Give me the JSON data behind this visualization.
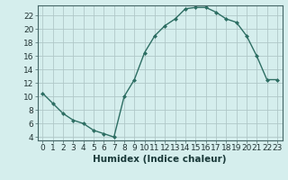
{
  "x": [
    0,
    1,
    2,
    3,
    4,
    5,
    6,
    7,
    8,
    9,
    10,
    11,
    12,
    13,
    14,
    15,
    16,
    17,
    18,
    19,
    20,
    21,
    22,
    23
  ],
  "y": [
    10.5,
    9.0,
    7.5,
    6.5,
    6.0,
    5.0,
    4.5,
    4.0,
    10.0,
    12.5,
    16.5,
    19.0,
    20.5,
    21.5,
    23.0,
    23.2,
    23.2,
    22.5,
    21.5,
    21.0,
    19.0,
    16.0,
    12.5,
    12.5
  ],
  "line_color": "#2d6e63",
  "marker": "D",
  "marker_size": 2.5,
  "bg_color": "#d5eeed",
  "grid_color": "#b0c8c8",
  "xlabel": "Humidex (Indice chaleur)",
  "xlim": [
    -0.5,
    23.5
  ],
  "ylim": [
    3.5,
    23.5
  ],
  "yticks": [
    4,
    6,
    8,
    10,
    12,
    14,
    16,
    18,
    20,
    22
  ],
  "xticks": [
    0,
    1,
    2,
    3,
    4,
    5,
    6,
    7,
    8,
    9,
    10,
    11,
    12,
    13,
    14,
    15,
    16,
    17,
    18,
    19,
    20,
    21,
    22,
    23
  ],
  "tick_fontsize": 6.5,
  "xlabel_fontsize": 7.5
}
